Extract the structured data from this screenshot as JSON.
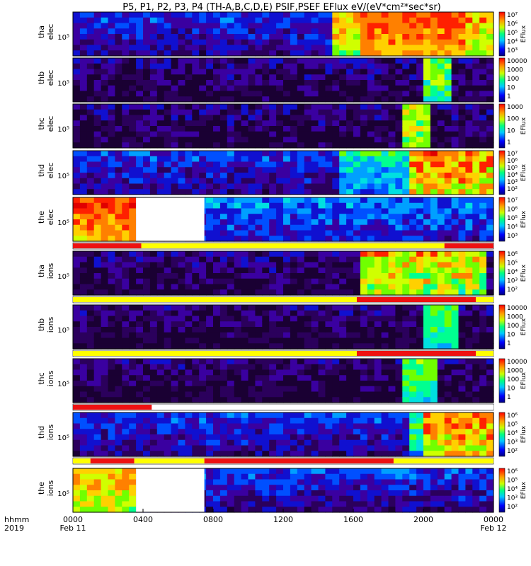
{
  "chart_data": {
    "type": "heatmap",
    "title": "P5, P1, P2, P3, P4 (TH-A,B,C,D,E) PSIF,PSEF EFlux eV/(eV*cm²*sec*sr)",
    "x_label": {
      "line1": "hhmm",
      "line2": "2019"
    },
    "x_ticks": [
      "0000",
      "0400",
      "0800",
      "1200",
      "1600",
      "2000",
      "0000"
    ],
    "x_date_labels": [
      "Feb 11",
      "Feb 12"
    ],
    "x_range_hours": [
      0,
      24
    ],
    "panels": [
      {
        "probe": "tha",
        "species": "elec",
        "ytick": "10⁵",
        "colorbar_label": "EFlux",
        "colorbar_ticks": [
          "10⁷",
          "10⁶",
          "10⁵",
          "10⁴",
          "10³"
        ],
        "data_gap": null,
        "flag_bar": null
      },
      {
        "probe": "thb",
        "species": "elec",
        "ytick": "10⁵",
        "colorbar_label": "",
        "colorbar_ticks": [
          "10000",
          "1000",
          "100",
          "10",
          "1"
        ],
        "data_gap": null,
        "flag_bar": null
      },
      {
        "probe": "thc",
        "species": "elec",
        "ytick": "10⁵",
        "colorbar_label": "EFlux",
        "colorbar_ticks": [
          "1000",
          "100",
          "10",
          "1"
        ],
        "data_gap": null,
        "flag_bar": null
      },
      {
        "probe": "thd",
        "species": "elec",
        "ytick": "10⁵",
        "colorbar_label": "EFlux",
        "colorbar_ticks": [
          "10⁷",
          "10⁶",
          "10⁵",
          "10⁴",
          "10³",
          "10²"
        ],
        "data_gap": null,
        "flag_bar": null
      },
      {
        "probe": "the",
        "species": "elec",
        "ytick": "10⁵",
        "colorbar_label": "EFlux",
        "colorbar_ticks": [
          "10⁷",
          "10⁶",
          "10⁵",
          "10⁴",
          "10³"
        ],
        "data_gap": [
          3.6,
          7.5
        ],
        "flag_bar": [
          [
            "red",
            0,
            3.9
          ],
          [
            "yellow",
            3.9,
            21.2
          ],
          [
            "red",
            21.2,
            24
          ]
        ]
      },
      {
        "probe": "tha",
        "species": "ions",
        "ytick": "10⁵",
        "colorbar_label": "EFlux",
        "colorbar_ticks": [
          "10⁶",
          "10⁵",
          "10⁴",
          "10³",
          "10²"
        ],
        "data_gap": null,
        "flag_bar": [
          [
            "yellow",
            0,
            16.2
          ],
          [
            "red",
            16.2,
            23
          ],
          [
            "yellow",
            23,
            24
          ]
        ]
      },
      {
        "probe": "thb",
        "species": "ions",
        "ytick": "10⁵",
        "colorbar_label": "EFlux",
        "colorbar_ticks": [
          "10000",
          "1000",
          "100",
          "10",
          "1"
        ],
        "data_gap": null,
        "flag_bar": [
          [
            "yellow",
            0,
            16.2
          ],
          [
            "red",
            16.2,
            23
          ],
          [
            "yellow",
            23,
            24
          ]
        ]
      },
      {
        "probe": "thc",
        "species": "ions",
        "ytick": "10⁵",
        "colorbar_label": "EFlux",
        "colorbar_ticks": [
          "10000",
          "1000",
          "100",
          "10",
          "1"
        ],
        "data_gap": null,
        "flag_bar": [
          [
            "red",
            0,
            4.5
          ],
          [
            "white",
            4.5,
            24
          ]
        ]
      },
      {
        "probe": "thd",
        "species": "ions",
        "ytick": "10⁵",
        "colorbar_label": "EFlux",
        "colorbar_ticks": [
          "10⁶",
          "10⁵",
          "10⁴",
          "10³",
          "10²"
        ],
        "data_gap": null,
        "flag_bar": [
          [
            "yellow",
            0,
            1
          ],
          [
            "red",
            1,
            3.5
          ],
          [
            "yellow",
            3.5,
            7.5
          ],
          [
            "red",
            7.5,
            18.3
          ],
          [
            "yellow",
            18.3,
            24
          ]
        ]
      },
      {
        "probe": "the",
        "species": "ions",
        "ytick": "10⁵",
        "colorbar_label": "EFlux",
        "colorbar_ticks": [
          "10⁶",
          "10⁵",
          "10⁴",
          "10³",
          "10²"
        ],
        "data_gap": [
          3.6,
          7.5
        ],
        "flag_bar": null
      }
    ]
  }
}
